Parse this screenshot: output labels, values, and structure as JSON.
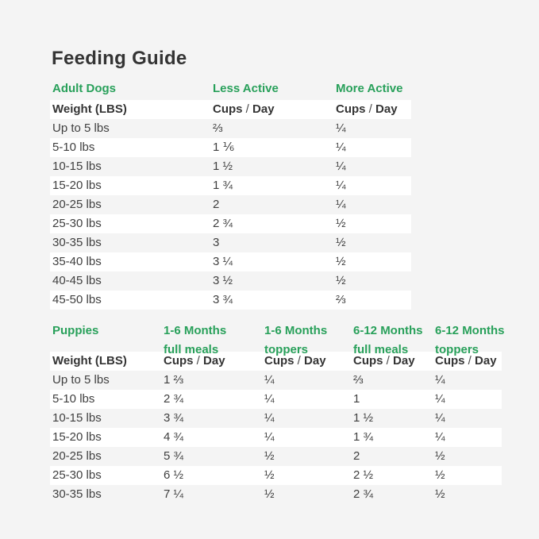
{
  "page": {
    "title": "Feeding Guide",
    "background_color": "#f4f4f4",
    "stripe_color": "#ffffff",
    "accent_green": "#28a05a",
    "text_dark": "#343434"
  },
  "cups_day": {
    "pre": "Cups",
    "slash": "/",
    "post": "Day"
  },
  "adult": {
    "section_label": "Adult Dogs",
    "col_less": "Less Active",
    "col_more": "More Active",
    "weight_header": "Weight (LBS)",
    "rows": [
      {
        "weight": "Up to 5 lbs",
        "less": "⅔",
        "more": "¼"
      },
      {
        "weight": "5-10 lbs",
        "less": "1 ⅙",
        "more": "¼"
      },
      {
        "weight": "10-15 lbs",
        "less": "1 ½",
        "more": "¼"
      },
      {
        "weight": "15-20 lbs",
        "less": "1 ¾",
        "more": "¼"
      },
      {
        "weight": "20-25 lbs",
        "less": "2",
        "more": "¼"
      },
      {
        "weight": "25-30 lbs",
        "less": "2 ¾",
        "more": "½"
      },
      {
        "weight": "30-35 lbs",
        "less": "3",
        "more": "½"
      },
      {
        "weight": "35-40 lbs",
        "less": "3 ¼",
        "more": "½"
      },
      {
        "weight": "40-45 lbs",
        "less": "3 ½",
        "more": "½"
      },
      {
        "weight": "45-50 lbs",
        "less": "3 ¾",
        "more": "⅔"
      }
    ]
  },
  "puppies": {
    "section_label": "Puppies",
    "weight_header": "Weight (LBS)",
    "columns": [
      {
        "line1": "1-6 Months",
        "line2": "full meals"
      },
      {
        "line1": "1-6 Months",
        "line2": "toppers"
      },
      {
        "line1": "6-12 Months",
        "line2": "full meals"
      },
      {
        "line1": "6-12 Months",
        "line2": "toppers"
      }
    ],
    "rows": [
      {
        "weight": "Up to 5 lbs",
        "values": [
          "1 ⅔",
          "¼",
          "⅔",
          "¼"
        ]
      },
      {
        "weight": "5-10 lbs",
        "values": [
          "2 ¾",
          "¼",
          "1",
          "¼"
        ]
      },
      {
        "weight": "10-15 lbs",
        "values": [
          "3 ¾",
          "¼",
          "1 ½",
          "¼"
        ]
      },
      {
        "weight": "15-20 lbs",
        "values": [
          "4 ¾",
          "¼",
          "1 ¾",
          "¼"
        ]
      },
      {
        "weight": "20-25 lbs",
        "values": [
          "5 ¾",
          "½",
          "2",
          "½"
        ]
      },
      {
        "weight": "25-30 lbs",
        "values": [
          "6 ½",
          "½",
          "2 ½",
          "½"
        ]
      },
      {
        "weight": "30-35 lbs",
        "values": [
          "7 ¼",
          "½",
          "2 ¾",
          "½"
        ]
      }
    ]
  }
}
